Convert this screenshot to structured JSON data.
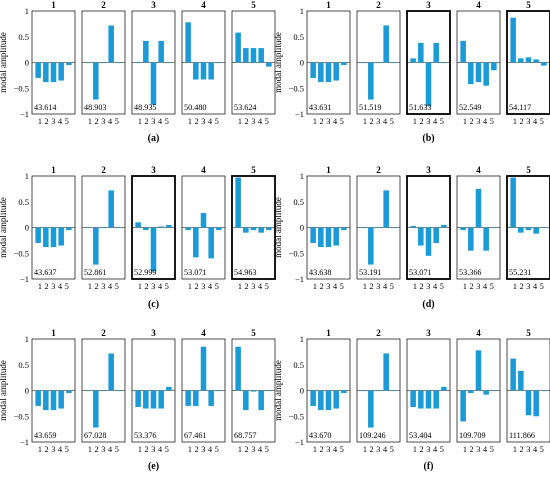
{
  "figure": {
    "ylabel": "modal amplitude",
    "y_ticks": [
      "1",
      "0.5",
      "0",
      "−0.5",
      "−1"
    ],
    "x_tick_labels": [
      "1",
      "2",
      "3",
      "4",
      "5"
    ],
    "bar_color": "#1a9ad6"
  },
  "chart_data": [
    {
      "type": "bar",
      "label": "(a)",
      "ylim": [
        -1,
        1
      ],
      "categories": [
        "1",
        "2",
        "3",
        "4",
        "5"
      ],
      "subplots": [
        {
          "title": "1",
          "freq": "43.614",
          "values": [
            -0.3,
            -0.38,
            -0.38,
            -0.35,
            -0.05
          ],
          "highlight": false
        },
        {
          "title": "2",
          "freq": "48.903",
          "values": [
            0,
            -0.72,
            0,
            0.72,
            0
          ],
          "highlight": false
        },
        {
          "title": "3",
          "freq": "48.935",
          "values": [
            0,
            0.42,
            -0.82,
            0.42,
            0
          ],
          "highlight": false
        },
        {
          "title": "4",
          "freq": "50.480",
          "values": [
            0.78,
            -0.33,
            -0.33,
            -0.33,
            0
          ],
          "highlight": false
        },
        {
          "title": "5",
          "freq": "53.624",
          "values": [
            0.58,
            0.28,
            0.28,
            0.28,
            -0.08
          ],
          "highlight": false
        }
      ]
    },
    {
      "type": "bar",
      "label": "(b)",
      "ylim": [
        -1,
        1
      ],
      "categories": [
        "1",
        "2",
        "3",
        "4",
        "5"
      ],
      "subplots": [
        {
          "title": "1",
          "freq": "43.631",
          "values": [
            -0.3,
            -0.38,
            -0.38,
            -0.35,
            -0.05
          ],
          "highlight": false
        },
        {
          "title": "2",
          "freq": "51.519",
          "values": [
            0,
            -0.72,
            0,
            0.72,
            0
          ],
          "highlight": false
        },
        {
          "title": "3",
          "freq": "51.633",
          "values": [
            0.08,
            0.38,
            -0.85,
            0.38,
            0
          ],
          "highlight": true
        },
        {
          "title": "4",
          "freq": "52.549",
          "values": [
            0.42,
            -0.42,
            -0.38,
            -0.45,
            -0.15
          ],
          "highlight": false
        },
        {
          "title": "5",
          "freq": "54.117",
          "values": [
            0.87,
            0.08,
            0.1,
            0.06,
            -0.06
          ],
          "highlight": true
        }
      ]
    },
    {
      "type": "bar",
      "label": "(c)",
      "ylim": [
        -1,
        1
      ],
      "categories": [
        "1",
        "2",
        "3",
        "4",
        "5"
      ],
      "subplots": [
        {
          "title": "1",
          "freq": "43.637",
          "values": [
            -0.3,
            -0.38,
            -0.38,
            -0.35,
            -0.05
          ],
          "highlight": false
        },
        {
          "title": "2",
          "freq": "52.861",
          "values": [
            0,
            -0.72,
            0,
            0.72,
            0
          ],
          "highlight": false
        },
        {
          "title": "3",
          "freq": "52.999",
          "values": [
            0.1,
            -0.05,
            -0.85,
            0.02,
            0.05
          ],
          "highlight": true
        },
        {
          "title": "4",
          "freq": "53.071",
          "values": [
            -0.05,
            -0.58,
            0.28,
            -0.6,
            -0.05
          ],
          "highlight": false
        },
        {
          "title": "5",
          "freq": "54.963",
          "values": [
            0.97,
            -0.1,
            -0.05,
            -0.1,
            -0.05
          ],
          "highlight": true
        }
      ]
    },
    {
      "type": "bar",
      "label": "(d)",
      "ylim": [
        -1,
        1
      ],
      "categories": [
        "1",
        "2",
        "3",
        "4",
        "5"
      ],
      "subplots": [
        {
          "title": "1",
          "freq": "43.638",
          "values": [
            -0.3,
            -0.38,
            -0.38,
            -0.35,
            -0.05
          ],
          "highlight": false
        },
        {
          "title": "2",
          "freq": "53.191",
          "values": [
            0,
            -0.72,
            0,
            0.72,
            0
          ],
          "highlight": false
        },
        {
          "title": "3",
          "freq": "53.071",
          "values": [
            0.03,
            -0.35,
            -0.55,
            -0.3,
            0.05
          ],
          "highlight": true
        },
        {
          "title": "4",
          "freq": "53.366",
          "values": [
            -0.05,
            -0.45,
            0.75,
            -0.45,
            0
          ],
          "highlight": false
        },
        {
          "title": "5",
          "freq": "55.231",
          "values": [
            0.97,
            -0.1,
            -0.05,
            -0.12,
            0
          ],
          "highlight": true
        }
      ]
    },
    {
      "type": "bar",
      "label": "(e)",
      "ylim": [
        -1,
        1
      ],
      "categories": [
        "1",
        "2",
        "3",
        "4",
        "5"
      ],
      "subplots": [
        {
          "title": "1",
          "freq": "43.659",
          "values": [
            -0.3,
            -0.38,
            -0.38,
            -0.35,
            -0.05
          ],
          "highlight": false
        },
        {
          "title": "2",
          "freq": "67.028",
          "values": [
            0,
            -0.72,
            0,
            0.72,
            0
          ],
          "highlight": false
        },
        {
          "title": "3",
          "freq": "53.376",
          "values": [
            -0.32,
            -0.35,
            -0.35,
            -0.35,
            0.07
          ],
          "highlight": false
        },
        {
          "title": "4",
          "freq": "67.461",
          "values": [
            -0.3,
            -0.3,
            0.85,
            -0.3,
            0
          ],
          "highlight": false
        },
        {
          "title": "5",
          "freq": "68.757",
          "values": [
            0.85,
            -0.38,
            -0.02,
            -0.38,
            0
          ],
          "highlight": false
        }
      ]
    },
    {
      "type": "bar",
      "label": "(f)",
      "ylim": [
        -1,
        1
      ],
      "categories": [
        "1",
        "2",
        "3",
        "4",
        "5"
      ],
      "subplots": [
        {
          "title": "1",
          "freq": "43.670",
          "values": [
            -0.3,
            -0.38,
            -0.38,
            -0.35,
            -0.05
          ],
          "highlight": false
        },
        {
          "title": "2",
          "freq": "109.246",
          "values": [
            0,
            -0.72,
            0,
            0.72,
            0
          ],
          "highlight": false
        },
        {
          "title": "3",
          "freq": "53.404",
          "values": [
            -0.32,
            -0.35,
            -0.35,
            -0.35,
            0.07
          ],
          "highlight": false
        },
        {
          "title": "4",
          "freq": "109.709",
          "values": [
            -0.6,
            -0.05,
            0.78,
            -0.08,
            0
          ],
          "highlight": false
        },
        {
          "title": "5",
          "freq": "111.866",
          "values": [
            0.62,
            0.38,
            -0.48,
            -0.5,
            0
          ],
          "highlight": false
        }
      ]
    }
  ]
}
